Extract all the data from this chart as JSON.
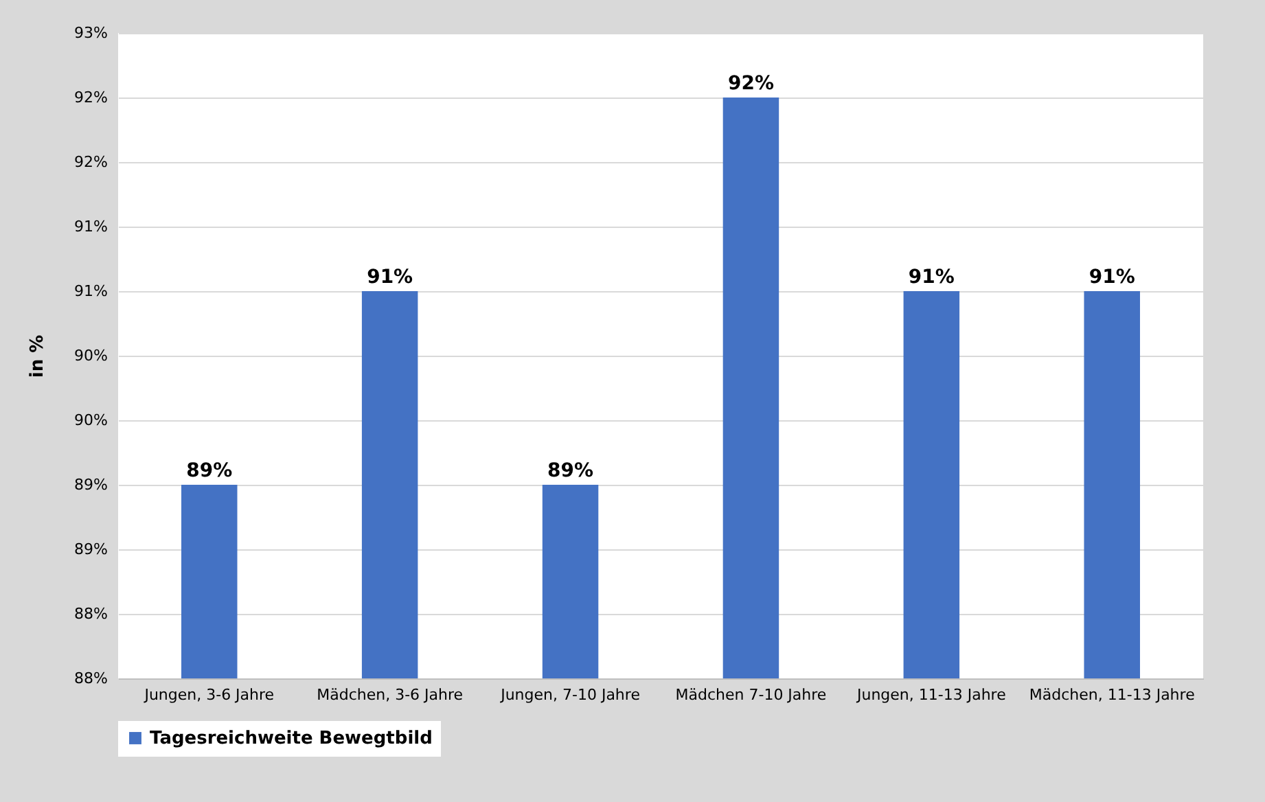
{
  "chart_data": {
    "type": "bar",
    "ylabel": "in %",
    "categories": [
      "Jungen, 3-6 Jahre",
      "Mädchen, 3-6 Jahre",
      "Jungen, 7-10 Jahre",
      "Mädchen 7-10 Jahre",
      "Jungen, 11-13 Jahre",
      "Mädchen, 11-13 Jahre"
    ],
    "series": [
      {
        "name": "Tagesreichweite Bewegtbild",
        "color": "#4472c4",
        "values": [
          89,
          90.5,
          89,
          92,
          90.5,
          90.5
        ],
        "value_labels": [
          "89%",
          "91%",
          "89%",
          "92%",
          "91%",
          "91%"
        ]
      }
    ],
    "ylim": [
      87.5,
      92.5
    ],
    "yticks": [
      {
        "value": 87.5,
        "label": "88%"
      },
      {
        "value": 88,
        "label": "88%"
      },
      {
        "value": 88.5,
        "label": "89%"
      },
      {
        "value": 89,
        "label": "89%"
      },
      {
        "value": 89.5,
        "label": "90%"
      },
      {
        "value": 90,
        "label": "90%"
      },
      {
        "value": 90.5,
        "label": "91%"
      },
      {
        "value": 91,
        "label": "91%"
      },
      {
        "value": 91.5,
        "label": "92%"
      },
      {
        "value": 92,
        "label": "92%"
      },
      {
        "value": 92.5,
        "label": "93%"
      }
    ],
    "grid": "y",
    "legend": "bottom"
  }
}
